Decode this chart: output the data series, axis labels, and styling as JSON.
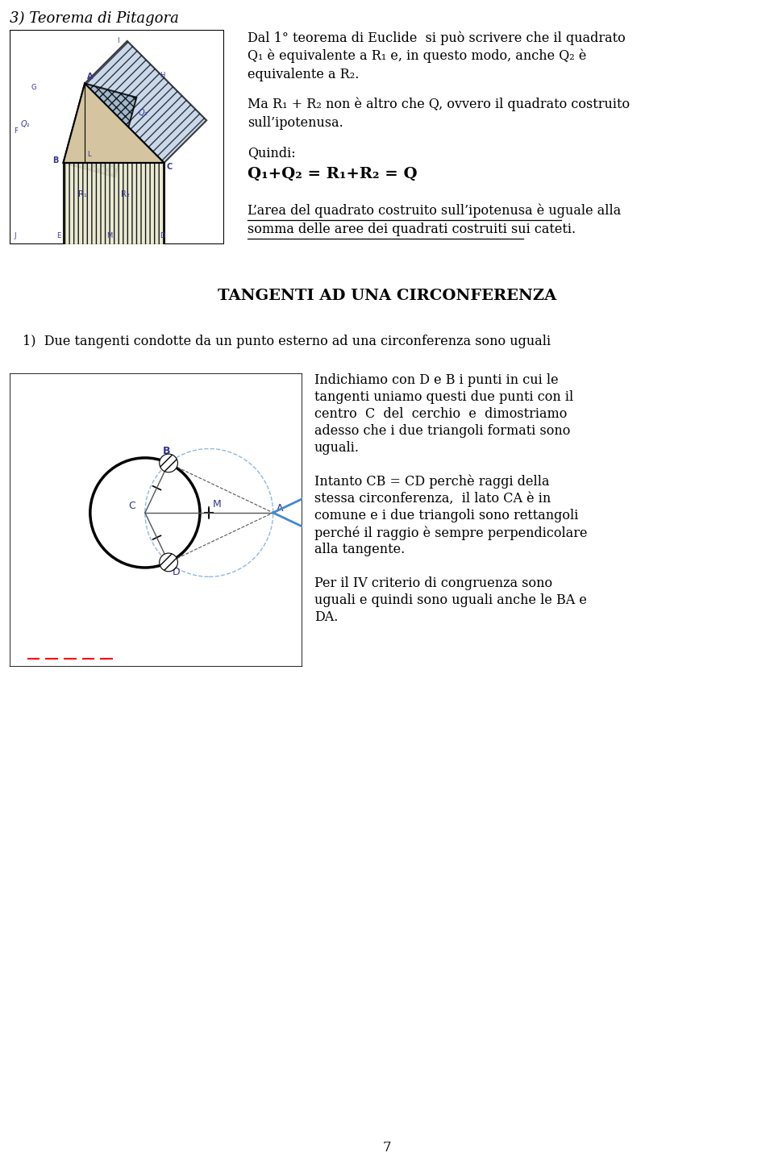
{
  "background_color": "#ffffff",
  "page_title": "3) Teorema di Pitagora",
  "page_number": "7",
  "section2_title": "TANGENTI AD UNA CIRCONFERENZA",
  "text_color": "#000000",
  "para1_line1": "Dal 1° teorema di Euclide  si può scrivere che il quadrato",
  "para1_line2": "Q₁ è equivalente a R₁ e, in questo modo, anche Q₂ è",
  "para1_line3": "equivalente a R₂.",
  "para2_line1": "Ma R₁ + R₂ non è altro che Q, ovvero il quadrato costruito",
  "para2_line2": "sull’ipotenusa.",
  "para3_label": "Quindi:",
  "para3_formula": "Q₁+Q₂ = R₁+R₂ = Q",
  "para4_line1": "L’area del quadrato costruito sull’ipotenusa è uguale alla",
  "para4_line2": "somma delle aree dei quadrati costruiti sui cateti.",
  "item1": "1)  Due tangenti condotte da un punto esterno ad una circonferenza sono uguali",
  "rtext_lines": [
    "Indichiamo con D e B i punti in cui le",
    "tangenti uniamo questi due punti con il",
    "centro  C  del  cerchio  e  dimostriamo",
    "adesso che i due triangoli formati sono",
    "uguali.",
    "",
    "Intanto CB = CD perchè raggi della",
    "stessa circonferenza,  il lato CA è in",
    "comune e i due triangoli sono rettangoli",
    "perché il raggio è sempre perpendicolare",
    "alla tangente.",
    "",
    "Per il IV criterio di congruenza sono",
    "uguali e quindi sono uguali anche le BA e",
    "DA."
  ]
}
